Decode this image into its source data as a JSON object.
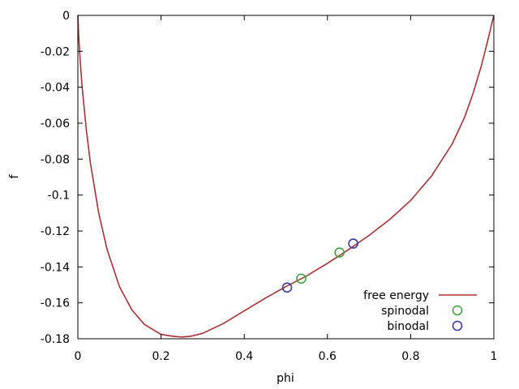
{
  "chart_data": {
    "type": "line",
    "title": "",
    "xlabel": "phi",
    "ylabel": "f",
    "xlim": [
      0,
      1
    ],
    "ylim": [
      -0.18,
      0
    ],
    "x_ticks": [
      0,
      0.2,
      0.4,
      0.6,
      0.8,
      1
    ],
    "x_tick_labels": [
      "0",
      "0.2",
      "0.4",
      "0.6",
      "0.8",
      "1"
    ],
    "y_ticks": [
      0,
      -0.02,
      -0.04,
      -0.06,
      -0.08,
      -0.1,
      -0.12,
      -0.14,
      -0.16,
      -0.18
    ],
    "y_tick_labels": [
      "0",
      "-0.02",
      "-0.04",
      "-0.06",
      "-0.08",
      "-0.1",
      "-0.12",
      "-0.14",
      "-0.16",
      "-0.18"
    ],
    "grid": false,
    "legend_position": "bottom-right",
    "series": [
      {
        "name": "free energy",
        "kind": "line",
        "color": "#a83232",
        "x": [
          0.0,
          0.002,
          0.005,
          0.01,
          0.02,
          0.03,
          0.05,
          0.07,
          0.1,
          0.13,
          0.16,
          0.2,
          0.23,
          0.25,
          0.27,
          0.3,
          0.35,
          0.4,
          0.45,
          0.5,
          0.55,
          0.6,
          0.65,
          0.7,
          0.75,
          0.8,
          0.85,
          0.9,
          0.93,
          0.95,
          0.97,
          0.98,
          0.99,
          0.995,
          1.0
        ],
        "y": [
          0.0,
          -0.011,
          -0.023,
          -0.039,
          -0.063,
          -0.082,
          -0.11,
          -0.13,
          -0.151,
          -0.164,
          -0.172,
          -0.1776,
          -0.1787,
          -0.179,
          -0.1787,
          -0.177,
          -0.1715,
          -0.1645,
          -0.1575,
          -0.151,
          -0.145,
          -0.138,
          -0.1305,
          -0.1225,
          -0.1135,
          -0.103,
          -0.0895,
          -0.0715,
          -0.0565,
          -0.0435,
          -0.028,
          -0.019,
          -0.0095,
          -0.0045,
          0.0
        ]
      },
      {
        "name": "spinodal",
        "kind": "points",
        "color": "#3fa33f",
        "x": [
          0.537,
          0.629
        ],
        "y": [
          -0.1465,
          -0.132
        ]
      },
      {
        "name": "binodal",
        "kind": "points",
        "color": "#3a3aa3",
        "x": [
          0.503,
          0.662
        ],
        "y": [
          -0.1515,
          -0.127
        ]
      }
    ]
  }
}
